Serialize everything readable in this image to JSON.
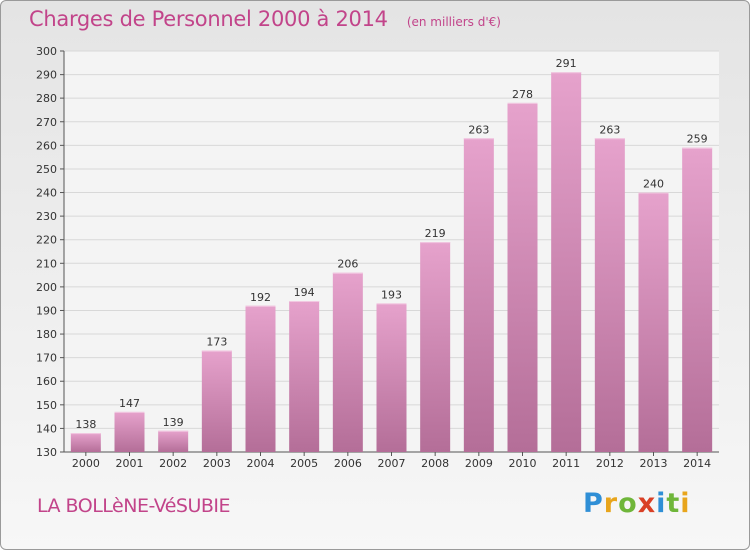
{
  "title": "Charges de Personnel 2000 à 2014",
  "subtitle": "(en milliers d'€)",
  "commune": "LA BOLLèNE-VéSUBIE",
  "logo": {
    "letters": [
      "P",
      "r",
      "o",
      "x",
      "i",
      "t",
      "i"
    ],
    "colors": [
      "#2f8fd6",
      "#e8a51c",
      "#6fb63a",
      "#d94026",
      "#2f8fd6",
      "#6fb63a",
      "#e8a51c"
    ]
  },
  "colors": {
    "bar_top": "#e6a2cc",
    "bar_bottom": "#b46e98",
    "accent": "#c2448a",
    "text": "#333333",
    "grid": "#d8d8d8"
  },
  "chart_data": {
    "type": "bar",
    "categories": [
      "2000",
      "2001",
      "2002",
      "2003",
      "2004",
      "2005",
      "2006",
      "2007",
      "2008",
      "2009",
      "2010",
      "2011",
      "2012",
      "2013",
      "2014"
    ],
    "values": [
      138,
      147,
      139,
      173,
      192,
      194,
      206,
      193,
      219,
      263,
      278,
      291,
      263,
      240,
      259
    ],
    "data_labels": [
      "138",
      "147",
      "139",
      "173",
      "192",
      "194",
      "206",
      "193",
      "219",
      "263",
      "278",
      "291",
      "263",
      "240",
      "259"
    ],
    "yticks": [
      "130",
      "140",
      "150",
      "160",
      "170",
      "180",
      "190",
      "200",
      "210",
      "220",
      "230",
      "240",
      "250",
      "260",
      "270",
      "280",
      "290",
      "300"
    ],
    "ylim": [
      130,
      300
    ],
    "grid": true,
    "legend": "none"
  }
}
